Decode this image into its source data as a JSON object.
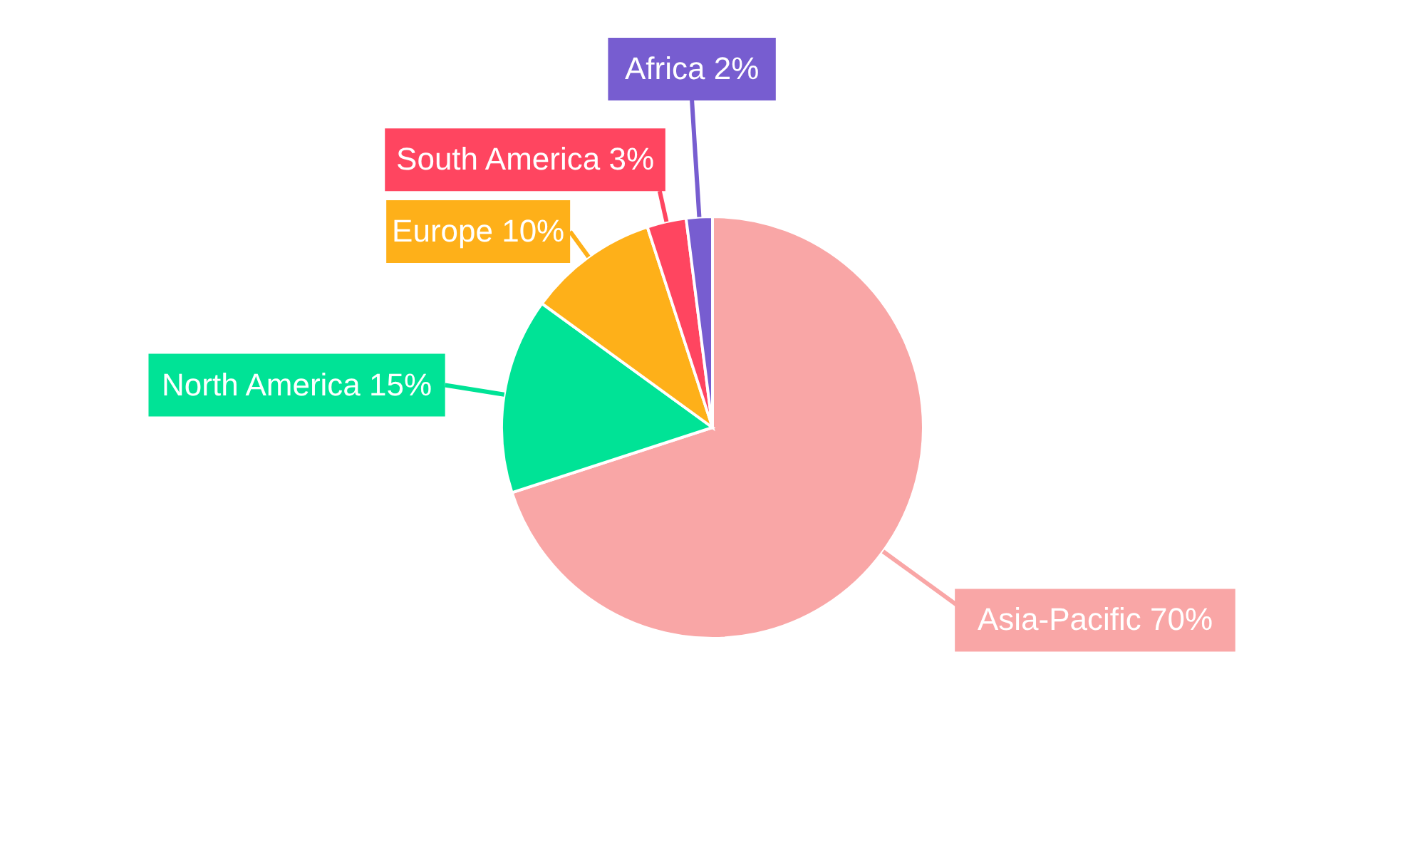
{
  "chart_data": {
    "type": "pie",
    "categories": [
      "Asia-Pacific",
      "North America",
      "Europe",
      "South America",
      "Africa"
    ],
    "values": [
      70,
      15,
      10,
      3,
      2
    ],
    "value_labels": [
      "70%",
      "15%",
      "10%",
      "3%",
      "2%"
    ],
    "colors": [
      "#f9a6a6",
      "#00e396",
      "#feb019",
      "#ff4560",
      "#775dd0"
    ]
  }
}
